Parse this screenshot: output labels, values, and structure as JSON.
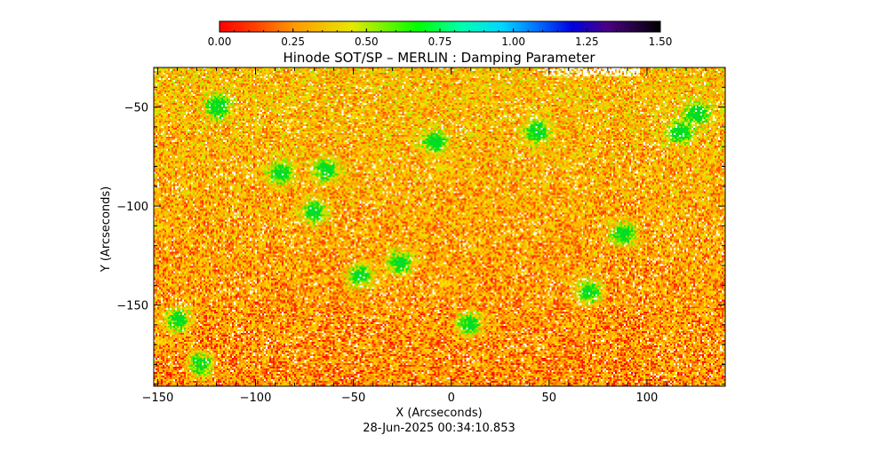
{
  "chart_data": {
    "type": "heatmap",
    "title": "Hinode SOT/SP – MERLIN : Damping Parameter",
    "xlabel": "X (Arcseconds)",
    "ylabel": "Y (Arcseconds)",
    "xlim": [
      -152,
      140
    ],
    "ylim": [
      -191,
      -30
    ],
    "x_ticks": [
      -150,
      -100,
      -50,
      0,
      50,
      100
    ],
    "y_ticks": [
      -50,
      -100,
      -150
    ],
    "colorbar": {
      "range": [
        0,
        1.5
      ],
      "ticks": [
        "0.00",
        "0.25",
        "0.50",
        "0.75",
        "1.00",
        "1.25",
        "1.50"
      ],
      "colors": [
        "#ff0000",
        "#ff8000",
        "#e8e800",
        "#00ff00",
        "#00e8ff",
        "#0000ff",
        "#4b0082",
        "#000000"
      ]
    },
    "grid": false,
    "value_distribution": "mostly 0.00–0.30 (red/orange), scattered patches near 0.5–0.7 (green)",
    "footer": "28-Jun-2025 00:34:10.853"
  }
}
